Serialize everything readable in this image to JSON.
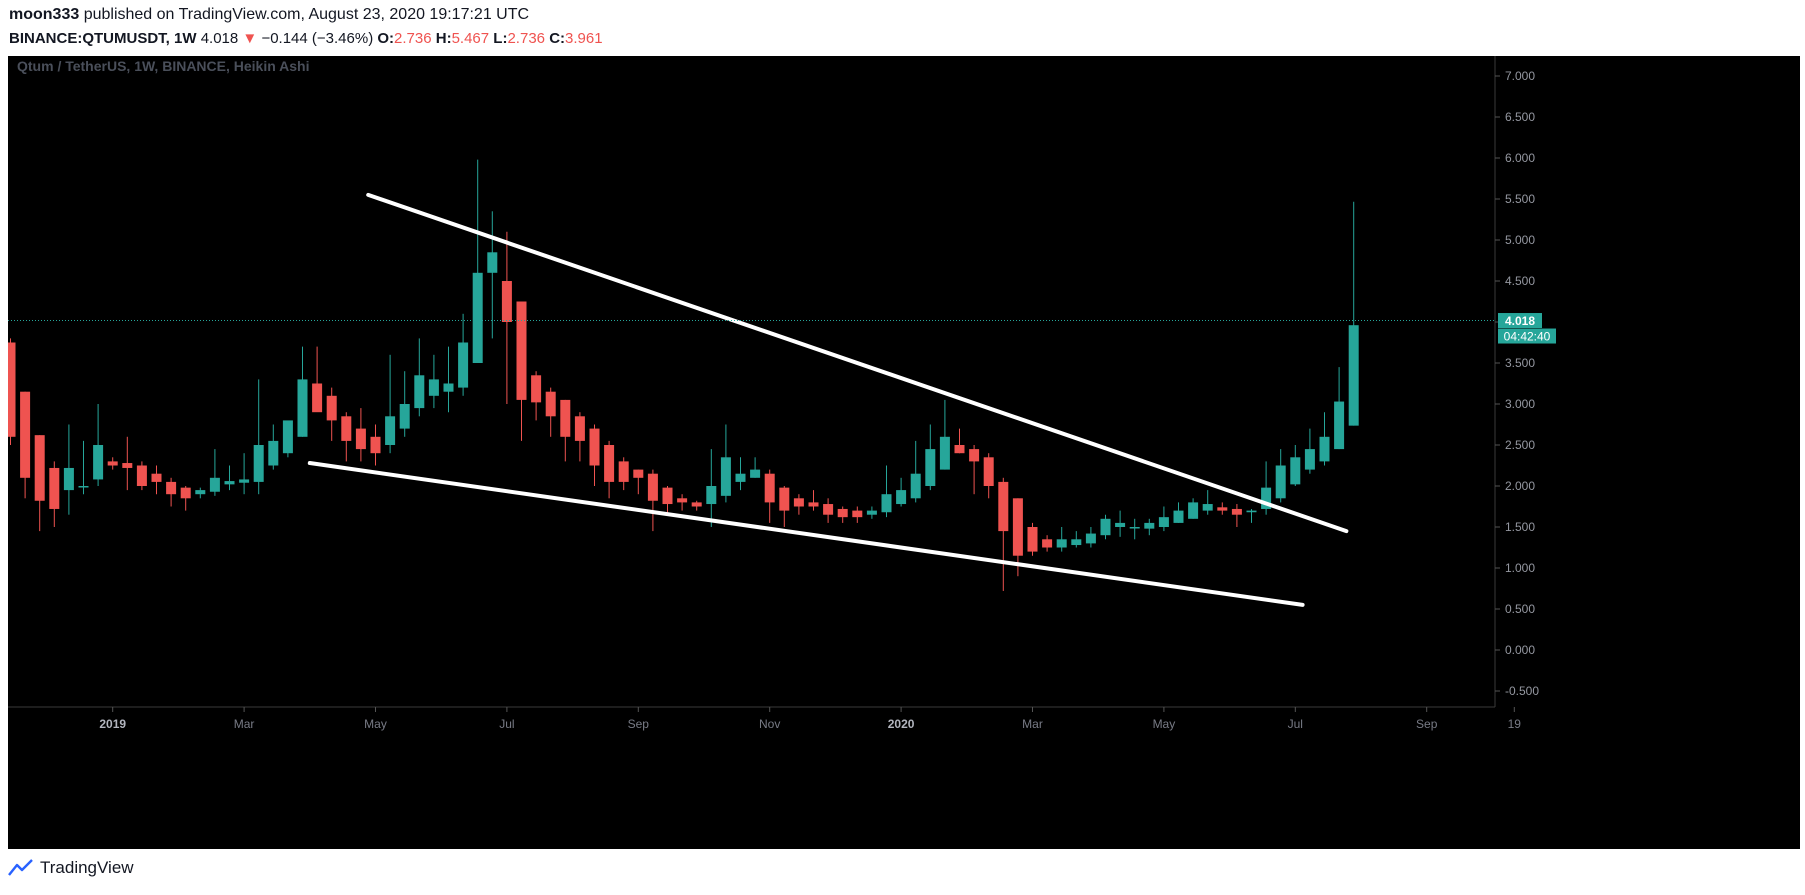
{
  "header": {
    "user": "moon333",
    "published_text": "published on TradingView.com, August 23, 2020 19:17:21 UTC",
    "symbol": "BINANCE:QTUMUSDT",
    "interval": ", 1W",
    "last": "4.018",
    "change_arrow": "▼",
    "change": "−0.144 (−3.46%)",
    "o_label": "O:",
    "o_value": "2.736",
    "h_label": "H:",
    "h_value": "5.467",
    "l_label": "L:",
    "l_value": "2.736",
    "c_label": "C:",
    "c_value": "3.961"
  },
  "footer": {
    "brand": "TradingView"
  },
  "chart_data": {
    "type": "candlestick",
    "title": "Qtum / TetherUS, 1W, BINANCE, Heikin Ashi",
    "ylim": [
      -0.7,
      7.3
    ],
    "yticks": [
      "7.000",
      "6.500",
      "6.000",
      "5.500",
      "5.000",
      "4.500",
      "4.000",
      "3.500",
      "3.000",
      "2.500",
      "2.000",
      "1.500",
      "1.000",
      "0.500",
      "0.000",
      "-0.500"
    ],
    "ytick_values": [
      7.0,
      6.5,
      6.0,
      5.5,
      5.0,
      4.5,
      4.0,
      3.5,
      3.0,
      2.5,
      2.0,
      1.5,
      1.0,
      0.5,
      0.0,
      -0.5
    ],
    "xticks": [
      {
        "label": "2019",
        "week": 7,
        "bold": true
      },
      {
        "label": "Mar",
        "week": 16
      },
      {
        "label": "May",
        "week": 25
      },
      {
        "label": "Jul",
        "week": 34
      },
      {
        "label": "Sep",
        "week": 43
      },
      {
        "label": "Nov",
        "week": 52
      },
      {
        "label": "2020",
        "week": 61,
        "bold": true
      },
      {
        "label": "Mar",
        "week": 70
      },
      {
        "label": "May",
        "week": 79
      },
      {
        "label": "Jul",
        "week": 88
      },
      {
        "label": "Sep",
        "week": 97
      },
      {
        "label": "19",
        "week": 103
      }
    ],
    "up_color": "#26a69a",
    "down_color": "#ef5350",
    "price_line": {
      "value": 4.018,
      "label": "4.018",
      "countdown": "04:42:40"
    },
    "candles": [
      {
        "o": 3.75,
        "h": 3.8,
        "l": 2.5,
        "c": 2.6
      },
      {
        "o": 3.15,
        "h": 3.15,
        "l": 1.85,
        "c": 2.1
      },
      {
        "o": 2.62,
        "h": 2.62,
        "l": 1.45,
        "c": 1.82
      },
      {
        "o": 2.22,
        "h": 2.3,
        "l": 1.5,
        "c": 1.72
      },
      {
        "o": 1.95,
        "h": 2.75,
        "l": 1.65,
        "c": 2.22
      },
      {
        "o": 2.0,
        "h": 2.55,
        "l": 1.9,
        "c": 2.0
      },
      {
        "o": 2.08,
        "h": 3.0,
        "l": 2.0,
        "c": 2.5
      },
      {
        "o": 2.3,
        "h": 2.35,
        "l": 2.2,
        "c": 2.25
      },
      {
        "o": 2.28,
        "h": 2.6,
        "l": 1.95,
        "c": 2.22
      },
      {
        "o": 2.25,
        "h": 2.3,
        "l": 1.95,
        "c": 2.0
      },
      {
        "o": 2.15,
        "h": 2.25,
        "l": 1.9,
        "c": 2.05
      },
      {
        "o": 2.05,
        "h": 2.1,
        "l": 1.75,
        "c": 1.9
      },
      {
        "o": 1.98,
        "h": 2.0,
        "l": 1.7,
        "c": 1.85
      },
      {
        "o": 1.9,
        "h": 1.98,
        "l": 1.85,
        "c": 1.95
      },
      {
        "o": 1.93,
        "h": 2.45,
        "l": 1.88,
        "c": 2.1
      },
      {
        "o": 2.02,
        "h": 2.25,
        "l": 1.95,
        "c": 2.06
      },
      {
        "o": 2.04,
        "h": 2.4,
        "l": 1.9,
        "c": 2.08
      },
      {
        "o": 2.05,
        "h": 3.3,
        "l": 1.9,
        "c": 2.5
      },
      {
        "o": 2.25,
        "h": 2.75,
        "l": 2.2,
        "c": 2.55
      },
      {
        "o": 2.4,
        "h": 2.75,
        "l": 2.35,
        "c": 2.8
      },
      {
        "o": 2.6,
        "h": 3.7,
        "l": 2.6,
        "c": 3.3
      },
      {
        "o": 3.25,
        "h": 3.7,
        "l": 2.95,
        "c": 2.9
      },
      {
        "o": 3.1,
        "h": 3.2,
        "l": 2.55,
        "c": 2.8
      },
      {
        "o": 2.85,
        "h": 2.9,
        "l": 2.3,
        "c": 2.55
      },
      {
        "o": 2.7,
        "h": 2.95,
        "l": 2.3,
        "c": 2.45
      },
      {
        "o": 2.6,
        "h": 2.75,
        "l": 2.25,
        "c": 2.4
      },
      {
        "o": 2.5,
        "h": 3.6,
        "l": 2.4,
        "c": 2.85
      },
      {
        "o": 2.7,
        "h": 3.4,
        "l": 2.6,
        "c": 3.0
      },
      {
        "o": 2.95,
        "h": 3.8,
        "l": 2.85,
        "c": 3.35
      },
      {
        "o": 3.1,
        "h": 3.6,
        "l": 2.95,
        "c": 3.3
      },
      {
        "o": 3.15,
        "h": 3.7,
        "l": 2.9,
        "c": 3.25
      },
      {
        "o": 3.2,
        "h": 4.1,
        "l": 3.1,
        "c": 3.75
      },
      {
        "o": 3.5,
        "h": 5.98,
        "l": 3.5,
        "c": 4.6
      },
      {
        "o": 4.6,
        "h": 5.35,
        "l": 3.8,
        "c": 4.85
      },
      {
        "o": 4.5,
        "h": 5.1,
        "l": 3.0,
        "c": 4.0
      },
      {
        "o": 4.25,
        "h": 4.25,
        "l": 2.55,
        "c": 3.05
      },
      {
        "o": 3.35,
        "h": 3.4,
        "l": 2.8,
        "c": 3.02
      },
      {
        "o": 3.15,
        "h": 3.2,
        "l": 2.6,
        "c": 2.85
      },
      {
        "o": 3.05,
        "h": 3.05,
        "l": 2.3,
        "c": 2.6
      },
      {
        "o": 2.85,
        "h": 2.9,
        "l": 2.3,
        "c": 2.55
      },
      {
        "o": 2.7,
        "h": 2.75,
        "l": 2.0,
        "c": 2.25
      },
      {
        "o": 2.5,
        "h": 2.55,
        "l": 1.85,
        "c": 2.05
      },
      {
        "o": 2.3,
        "h": 2.35,
        "l": 1.95,
        "c": 2.05
      },
      {
        "o": 2.2,
        "h": 2.2,
        "l": 1.9,
        "c": 2.1
      },
      {
        "o": 2.15,
        "h": 2.2,
        "l": 1.45,
        "c": 1.82
      },
      {
        "o": 1.98,
        "h": 2.0,
        "l": 1.65,
        "c": 1.78
      },
      {
        "o": 1.85,
        "h": 1.9,
        "l": 1.7,
        "c": 1.8
      },
      {
        "o": 1.8,
        "h": 1.82,
        "l": 1.7,
        "c": 1.75
      },
      {
        "o": 1.78,
        "h": 2.45,
        "l": 1.5,
        "c": 2.0
      },
      {
        "o": 1.88,
        "h": 2.75,
        "l": 1.8,
        "c": 2.35
      },
      {
        "o": 2.05,
        "h": 2.35,
        "l": 1.95,
        "c": 2.15
      },
      {
        "o": 2.1,
        "h": 2.35,
        "l": 2.1,
        "c": 2.2
      },
      {
        "o": 2.15,
        "h": 2.2,
        "l": 1.55,
        "c": 1.8
      },
      {
        "o": 1.98,
        "h": 2.0,
        "l": 1.5,
        "c": 1.7
      },
      {
        "o": 1.85,
        "h": 1.9,
        "l": 1.65,
        "c": 1.75
      },
      {
        "o": 1.8,
        "h": 1.95,
        "l": 1.7,
        "c": 1.75
      },
      {
        "o": 1.78,
        "h": 1.85,
        "l": 1.55,
        "c": 1.65
      },
      {
        "o": 1.72,
        "h": 1.75,
        "l": 1.55,
        "c": 1.62
      },
      {
        "o": 1.7,
        "h": 1.75,
        "l": 1.55,
        "c": 1.62
      },
      {
        "o": 1.65,
        "h": 1.75,
        "l": 1.6,
        "c": 1.7
      },
      {
        "o": 1.68,
        "h": 2.25,
        "l": 1.62,
        "c": 1.9
      },
      {
        "o": 1.78,
        "h": 2.1,
        "l": 1.75,
        "c": 1.95
      },
      {
        "o": 1.85,
        "h": 2.55,
        "l": 1.8,
        "c": 2.15
      },
      {
        "o": 2.0,
        "h": 2.75,
        "l": 1.95,
        "c": 2.45
      },
      {
        "o": 2.2,
        "h": 3.05,
        "l": 2.2,
        "c": 2.6
      },
      {
        "o": 2.5,
        "h": 2.7,
        "l": 2.4,
        "c": 2.4
      },
      {
        "o": 2.45,
        "h": 2.5,
        "l": 1.9,
        "c": 2.3
      },
      {
        "o": 2.35,
        "h": 2.4,
        "l": 1.85,
        "c": 2.0
      },
      {
        "o": 2.05,
        "h": 2.1,
        "l": 0.72,
        "c": 1.45
      },
      {
        "o": 1.85,
        "h": 1.85,
        "l": 0.9,
        "c": 1.15
      },
      {
        "o": 1.5,
        "h": 1.55,
        "l": 1.15,
        "c": 1.2
      },
      {
        "o": 1.35,
        "h": 1.4,
        "l": 1.2,
        "c": 1.25
      },
      {
        "o": 1.25,
        "h": 1.5,
        "l": 1.2,
        "c": 1.35
      },
      {
        "o": 1.28,
        "h": 1.45,
        "l": 1.25,
        "c": 1.35
      },
      {
        "o": 1.3,
        "h": 1.5,
        "l": 1.25,
        "c": 1.42
      },
      {
        "o": 1.4,
        "h": 1.65,
        "l": 1.35,
        "c": 1.6
      },
      {
        "o": 1.5,
        "h": 1.7,
        "l": 1.38,
        "c": 1.55
      },
      {
        "o": 1.5,
        "h": 1.6,
        "l": 1.35,
        "c": 1.5
      },
      {
        "o": 1.48,
        "h": 1.6,
        "l": 1.4,
        "c": 1.55
      },
      {
        "o": 1.5,
        "h": 1.75,
        "l": 1.45,
        "c": 1.62
      },
      {
        "o": 1.55,
        "h": 1.8,
        "l": 1.55,
        "c": 1.7
      },
      {
        "o": 1.6,
        "h": 1.85,
        "l": 1.6,
        "c": 1.8
      },
      {
        "o": 1.7,
        "h": 1.95,
        "l": 1.65,
        "c": 1.78
      },
      {
        "o": 1.74,
        "h": 1.8,
        "l": 1.65,
        "c": 1.7
      },
      {
        "o": 1.72,
        "h": 1.78,
        "l": 1.5,
        "c": 1.65
      },
      {
        "o": 1.68,
        "h": 1.72,
        "l": 1.55,
        "c": 1.7
      },
      {
        "o": 1.72,
        "h": 2.3,
        "l": 1.65,
        "c": 1.98
      },
      {
        "o": 1.85,
        "h": 2.45,
        "l": 1.8,
        "c": 2.25
      },
      {
        "o": 2.02,
        "h": 2.5,
        "l": 2.0,
        "c": 2.35
      },
      {
        "o": 2.2,
        "h": 2.7,
        "l": 2.15,
        "c": 2.45
      },
      {
        "o": 2.3,
        "h": 2.9,
        "l": 2.25,
        "c": 2.6
      },
      {
        "o": 2.45,
        "h": 3.45,
        "l": 2.45,
        "c": 3.03
      },
      {
        "o": 2.736,
        "h": 5.467,
        "l": 2.736,
        "c": 3.961
      }
    ],
    "trendlines": [
      {
        "from": {
          "week": 24.5,
          "value": 5.55
        },
        "to": {
          "week": 91.5,
          "value": 1.45
        }
      },
      {
        "from": {
          "week": 20.5,
          "value": 2.28
        },
        "to": {
          "week": 88.5,
          "value": 0.55
        }
      }
    ]
  }
}
